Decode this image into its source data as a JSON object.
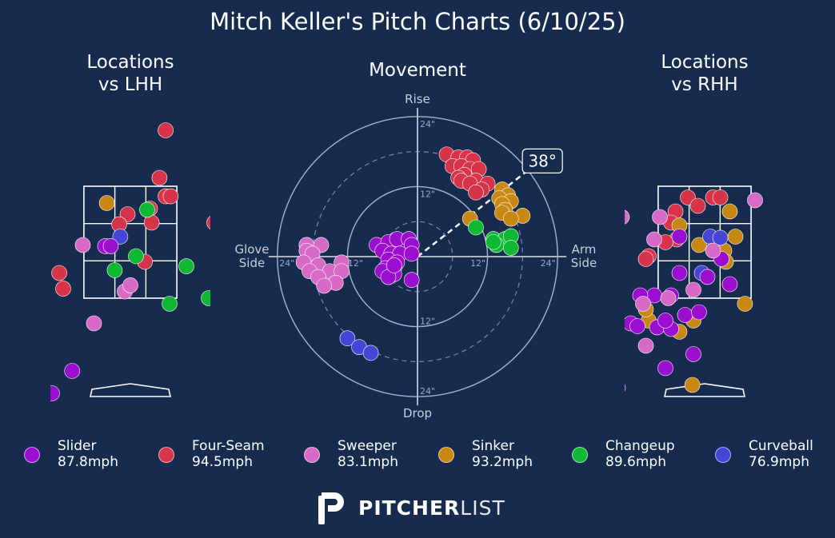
{
  "title": "Mitch Keller's Pitch Charts (6/10/25)",
  "panels": {
    "left_title": "Locations\nvs LHH",
    "movement_title": "Movement",
    "right_title": "Locations\nvs RHH"
  },
  "movement_axes": {
    "top": "Rise",
    "bottom": "Drop",
    "left": "Glove\nSide",
    "right": "Arm\nSide",
    "ring_labels": [
      "12\"",
      "24\""
    ],
    "arm_angle_label": "38°",
    "arm_angle_deg": 38
  },
  "brand": {
    "bold": "PITCHER",
    "light": "LIST"
  },
  "colors": {
    "background": "#162b4e",
    "Slider": "#9b0ecf",
    "Four-Seam": "#d7344a",
    "Sweeper": "#d86ac7",
    "Sinker": "#c98813",
    "Changeup": "#0fb832",
    "Curveball": "#4646d6"
  },
  "legend": [
    {
      "name": "Slider",
      "speed": "87.8mph",
      "color": "#9b0ecf"
    },
    {
      "name": "Four-Seam",
      "speed": "94.5mph",
      "color": "#d7344a"
    },
    {
      "name": "Sweeper",
      "speed": "83.1mph",
      "color": "#d86ac7"
    },
    {
      "name": "Sinker",
      "speed": "93.2mph",
      "color": "#c98813"
    },
    {
      "name": "Changeup",
      "speed": "89.6mph",
      "color": "#0fb832"
    },
    {
      "name": "Curveball",
      "speed": "76.9mph",
      "color": "#4646d6"
    }
  ],
  "chart_data": [
    {
      "type": "scatter",
      "panel": "Locations vs LHH",
      "x_units": "feet (catcher view)",
      "y_units": "feet",
      "strike_zone": {
        "x": [
          -0.83,
          0.83
        ],
        "y": [
          1.5,
          3.5
        ]
      },
      "points": [
        {
          "pitch": "Four-Seam",
          "x": 0.63,
          "y": 4.5
        },
        {
          "pitch": "Four-Seam",
          "x": 0.52,
          "y": 3.65
        },
        {
          "pitch": "Four-Seam",
          "x": 0.63,
          "y": 3.32
        },
        {
          "pitch": "Four-Seam",
          "x": 0.35,
          "y": 3.1
        },
        {
          "pitch": "Four-Seam",
          "x": -0.05,
          "y": 3.0
        },
        {
          "pitch": "Four-Seam",
          "x": 0.38,
          "y": 2.85
        },
        {
          "pitch": "Four-Seam",
          "x": -0.2,
          "y": 2.82
        },
        {
          "pitch": "Four-Seam",
          "x": 0.26,
          "y": 2.15
        },
        {
          "pitch": "Four-Seam",
          "x": -1.27,
          "y": 1.95
        },
        {
          "pitch": "Four-Seam",
          "x": -1.2,
          "y": 1.67
        },
        {
          "pitch": "Four-Seam",
          "x": 1.5,
          "y": 2.85
        },
        {
          "pitch": "Four-Seam",
          "x": 0.72,
          "y": 3.32
        },
        {
          "pitch": "Sinker",
          "x": -0.42,
          "y": 3.2
        },
        {
          "pitch": "Changeup",
          "x": 0.3,
          "y": 3.08
        },
        {
          "pitch": "Changeup",
          "x": 0.1,
          "y": 2.25
        },
        {
          "pitch": "Changeup",
          "x": -0.28,
          "y": 2.0
        },
        {
          "pitch": "Changeup",
          "x": 1.0,
          "y": 2.07
        },
        {
          "pitch": "Changeup",
          "x": 0.7,
          "y": 1.4
        },
        {
          "pitch": "Changeup",
          "x": 1.4,
          "y": 1.5
        },
        {
          "pitch": "Curveball",
          "x": -0.18,
          "y": 2.6
        },
        {
          "pitch": "Slider",
          "x": -0.45,
          "y": 2.43
        },
        {
          "pitch": "Slider",
          "x": -0.35,
          "y": 2.43
        },
        {
          "pitch": "Slider",
          "x": -1.04,
          "y": 0.2
        },
        {
          "pitch": "Slider",
          "x": -1.4,
          "y": -0.2
        },
        {
          "pitch": "Sweeper",
          "x": -0.85,
          "y": 2.45
        },
        {
          "pitch": "Sweeper",
          "x": -0.1,
          "y": 1.62
        },
        {
          "pitch": "Sweeper",
          "x": 0.0,
          "y": 1.73
        },
        {
          "pitch": "Sweeper",
          "x": -0.65,
          "y": 1.05
        }
      ]
    },
    {
      "type": "scatter",
      "panel": "Movement",
      "x_units": "inches of horizontal break (glove side negative, arm side positive)",
      "y_units": "inches of induced vertical break",
      "xlim": [
        -24,
        24
      ],
      "ylim": [
        -24,
        24
      ],
      "points": [
        {
          "pitch": "Four-Seam",
          "x": 5,
          "y": 17.5
        },
        {
          "pitch": "Four-Seam",
          "x": 7,
          "y": 17
        },
        {
          "pitch": "Four-Seam",
          "x": 8.5,
          "y": 17
        },
        {
          "pitch": "Four-Seam",
          "x": 9.5,
          "y": 16.5
        },
        {
          "pitch": "Four-Seam",
          "x": 6,
          "y": 15.5
        },
        {
          "pitch": "Four-Seam",
          "x": 7.5,
          "y": 15.5
        },
        {
          "pitch": "Four-Seam",
          "x": 9,
          "y": 15
        },
        {
          "pitch": "Four-Seam",
          "x": 10.5,
          "y": 15
        },
        {
          "pitch": "Four-Seam",
          "x": 8,
          "y": 14
        },
        {
          "pitch": "Four-Seam",
          "x": 7,
          "y": 13.5
        },
        {
          "pitch": "Four-Seam",
          "x": 10,
          "y": 13
        },
        {
          "pitch": "Four-Seam",
          "x": 12,
          "y": 12.5
        },
        {
          "pitch": "Four-Seam",
          "x": 7.5,
          "y": 13
        },
        {
          "pitch": "Four-Seam",
          "x": 9,
          "y": 12.5
        },
        {
          "pitch": "Four-Seam",
          "x": 11,
          "y": 11.5
        },
        {
          "pitch": "Four-Seam",
          "x": 10,
          "y": 11
        },
        {
          "pitch": "Sinker",
          "x": 14.5,
          "y": 11.5
        },
        {
          "pitch": "Sinker",
          "x": 15.5,
          "y": 10.5
        },
        {
          "pitch": "Sinker",
          "x": 14,
          "y": 10
        },
        {
          "pitch": "Sinker",
          "x": 16,
          "y": 9.5
        },
        {
          "pitch": "Sinker",
          "x": 14.5,
          "y": 9
        },
        {
          "pitch": "Sinker",
          "x": 15,
          "y": 8
        },
        {
          "pitch": "Sinker",
          "x": 14.5,
          "y": 7.5
        },
        {
          "pitch": "Sinker",
          "x": 18,
          "y": 7
        },
        {
          "pitch": "Sinker",
          "x": 16,
          "y": 6.5
        },
        {
          "pitch": "Sinker",
          "x": 9,
          "y": 6.5
        },
        {
          "pitch": "Changeup",
          "x": 10,
          "y": 5
        },
        {
          "pitch": "Changeup",
          "x": 13,
          "y": 3
        },
        {
          "pitch": "Changeup",
          "x": 15,
          "y": 3
        },
        {
          "pitch": "Changeup",
          "x": 16,
          "y": 3.5
        },
        {
          "pitch": "Changeup",
          "x": 13.5,
          "y": 2
        },
        {
          "pitch": "Changeup",
          "x": 16,
          "y": 1.5
        },
        {
          "pitch": "Changeup",
          "x": 13,
          "y": 2.5
        },
        {
          "pitch": "Slider",
          "x": -7,
          "y": 2
        },
        {
          "pitch": "Slider",
          "x": -5,
          "y": 2.5
        },
        {
          "pitch": "Slider",
          "x": -3.5,
          "y": 3
        },
        {
          "pitch": "Slider",
          "x": -1.5,
          "y": 3
        },
        {
          "pitch": "Slider",
          "x": -1,
          "y": 2
        },
        {
          "pitch": "Slider",
          "x": -6,
          "y": 1
        },
        {
          "pitch": "Slider",
          "x": -4.5,
          "y": 0.5
        },
        {
          "pitch": "Slider",
          "x": -3,
          "y": 0.5
        },
        {
          "pitch": "Slider",
          "x": -1,
          "y": 0.5
        },
        {
          "pitch": "Slider",
          "x": -5,
          "y": -0.5
        },
        {
          "pitch": "Slider",
          "x": -3.5,
          "y": -1
        },
        {
          "pitch": "Slider",
          "x": -5.5,
          "y": -2
        },
        {
          "pitch": "Slider",
          "x": -4,
          "y": -2
        },
        {
          "pitch": "Slider",
          "x": -6,
          "y": -2.5
        },
        {
          "pitch": "Slider",
          "x": -4,
          "y": -3
        },
        {
          "pitch": "Slider",
          "x": -5,
          "y": -3.5
        },
        {
          "pitch": "Slider",
          "x": -1,
          "y": -4
        },
        {
          "pitch": "Slider",
          "x": -4,
          "y": -1.5
        },
        {
          "pitch": "Sweeper",
          "x": -19,
          "y": 2
        },
        {
          "pitch": "Sweeper",
          "x": -16.5,
          "y": 2
        },
        {
          "pitch": "Sweeper",
          "x": -19,
          "y": 1
        },
        {
          "pitch": "Sweeper",
          "x": -18,
          "y": 0.5
        },
        {
          "pitch": "Sweeper",
          "x": -19.5,
          "y": -1
        },
        {
          "pitch": "Sweeper",
          "x": -17,
          "y": -1.5
        },
        {
          "pitch": "Sweeper",
          "x": -13,
          "y": -1
        },
        {
          "pitch": "Sweeper",
          "x": -18.5,
          "y": -2.5
        },
        {
          "pitch": "Sweeper",
          "x": -15,
          "y": -2.5
        },
        {
          "pitch": "Sweeper",
          "x": -13,
          "y": -2.5
        },
        {
          "pitch": "Sweeper",
          "x": -17,
          "y": -3.5
        },
        {
          "pitch": "Sweeper",
          "x": -14,
          "y": -4.5
        },
        {
          "pitch": "Sweeper",
          "x": -16,
          "y": -5
        },
        {
          "pitch": "Curveball",
          "x": -12,
          "y": -14
        },
        {
          "pitch": "Curveball",
          "x": -10,
          "y": -15.5
        },
        {
          "pitch": "Curveball",
          "x": -8,
          "y": -16.5
        }
      ]
    },
    {
      "type": "scatter",
      "panel": "Locations vs RHH",
      "x_units": "feet (catcher view)",
      "y_units": "feet",
      "strike_zone": {
        "x": [
          -0.83,
          0.83
        ],
        "y": [
          1.5,
          3.5
        ]
      },
      "points": [
        {
          "pitch": "Four-Seam",
          "x": -0.3,
          "y": 3.3
        },
        {
          "pitch": "Four-Seam",
          "x": 0.15,
          "y": 3.3
        },
        {
          "pitch": "Four-Seam",
          "x": 0.28,
          "y": 3.3
        },
        {
          "pitch": "Four-Seam",
          "x": -0.12,
          "y": 3.15
        },
        {
          "pitch": "Four-Seam",
          "x": -0.52,
          "y": 3.05
        },
        {
          "pitch": "Four-Seam",
          "x": -0.6,
          "y": 2.85
        },
        {
          "pitch": "Four-Seam",
          "x": -0.5,
          "y": 2.55
        },
        {
          "pitch": "Four-Seam",
          "x": -0.7,
          "y": 2.5
        },
        {
          "pitch": "Four-Seam",
          "x": -1.0,
          "y": 2.25
        },
        {
          "pitch": "Four-Seam",
          "x": -1.05,
          "y": 2.2
        },
        {
          "pitch": "Sinker",
          "x": 0.45,
          "y": 3.05
        },
        {
          "pitch": "Sinker",
          "x": -0.45,
          "y": 2.8
        },
        {
          "pitch": "Sinker",
          "x": 0.55,
          "y": 2.6
        },
        {
          "pitch": "Sinker",
          "x": -0.1,
          "y": 2.45
        },
        {
          "pitch": "Sinker",
          "x": 0.35,
          "y": 2.35
        },
        {
          "pitch": "Sinker",
          "x": 0.38,
          "y": 2.15
        },
        {
          "pitch": "Sinker",
          "x": -1.0,
          "y": 1.1
        },
        {
          "pitch": "Sinker",
          "x": -0.45,
          "y": 0.9
        },
        {
          "pitch": "Sinker",
          "x": -1.05,
          "y": 1.3
        },
        {
          "pitch": "Sinker",
          "x": 0.72,
          "y": 1.4
        },
        {
          "pitch": "Sinker",
          "x": -0.2,
          "y": 1.1
        },
        {
          "pitch": "Sinker",
          "x": -0.22,
          "y": -0.05
        },
        {
          "pitch": "Curveball",
          "x": 0.1,
          "y": 2.6
        },
        {
          "pitch": "Curveball",
          "x": 0.28,
          "y": 2.58
        },
        {
          "pitch": "Curveball",
          "x": -0.05,
          "y": 1.95
        },
        {
          "pitch": "Slider",
          "x": -0.45,
          "y": 2.6
        },
        {
          "pitch": "Slider",
          "x": -0.45,
          "y": 1.95
        },
        {
          "pitch": "Slider",
          "x": 0.05,
          "y": 1.88
        },
        {
          "pitch": "Slider",
          "x": 0.3,
          "y": 2.2
        },
        {
          "pitch": "Slider",
          "x": 0.45,
          "y": 1.75
        },
        {
          "pitch": "Slider",
          "x": -0.9,
          "y": 1.55
        },
        {
          "pitch": "Slider",
          "x": -1.15,
          "y": 1.55
        },
        {
          "pitch": "Slider",
          "x": -0.6,
          "y": 1.55
        },
        {
          "pitch": "Slider",
          "x": -0.35,
          "y": 1.2
        },
        {
          "pitch": "Slider",
          "x": -0.1,
          "y": 1.25
        },
        {
          "pitch": "Slider",
          "x": -1.32,
          "y": 1.05
        },
        {
          "pitch": "Slider",
          "x": -1.2,
          "y": 1.0
        },
        {
          "pitch": "Slider",
          "x": -0.85,
          "y": 0.98
        },
        {
          "pitch": "Slider",
          "x": -0.6,
          "y": 0.95
        },
        {
          "pitch": "Slider",
          "x": -0.7,
          "y": 1.1
        },
        {
          "pitch": "Slider",
          "x": -0.2,
          "y": 0.5
        },
        {
          "pitch": "Slider",
          "x": -0.7,
          "y": 0.25
        },
        {
          "pitch": "Slider",
          "x": -1.55,
          "y": -0.1
        },
        {
          "pitch": "Sweeper",
          "x": 0.9,
          "y": 3.25
        },
        {
          "pitch": "Sweeper",
          "x": -1.48,
          "y": 2.95
        },
        {
          "pitch": "Sweeper",
          "x": -0.8,
          "y": 2.95
        },
        {
          "pitch": "Sweeper",
          "x": -0.9,
          "y": 2.55
        },
        {
          "pitch": "Sweeper",
          "x": 0.15,
          "y": 2.35
        },
        {
          "pitch": "Sweeper",
          "x": -0.2,
          "y": 1.65
        },
        {
          "pitch": "Sweeper",
          "x": -1.1,
          "y": 1.4
        },
        {
          "pitch": "Sweeper",
          "x": -0.65,
          "y": 1.5
        },
        {
          "pitch": "Sweeper",
          "x": -1.05,
          "y": 0.65
        },
        {
          "pitch": "Sweeper",
          "x": -1.6,
          "y": 1.3
        }
      ]
    }
  ]
}
